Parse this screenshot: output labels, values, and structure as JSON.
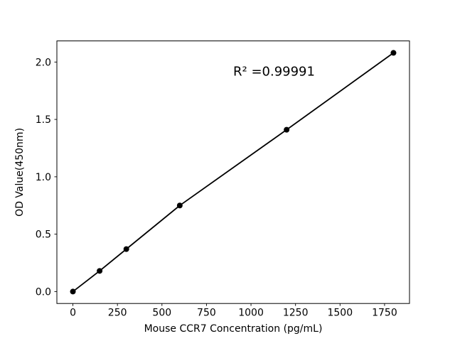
{
  "chart_data": {
    "type": "line",
    "title": "",
    "xlabel": "Mouse CCR7 Concentration (pg/mL)",
    "ylabel": "OD Value(450nm)",
    "x": [
      0,
      150,
      300,
      600,
      1200,
      1800
    ],
    "y": [
      0.0,
      0.18,
      0.37,
      0.75,
      1.41,
      2.08
    ],
    "xlim": [
      -90,
      1890
    ],
    "ylim": [
      -0.104,
      2.184
    ],
    "xtick_values": [
      0,
      250,
      500,
      750,
      1000,
      1250,
      1500,
      1750
    ],
    "xtick_labels": [
      "0",
      "250",
      "500",
      "750",
      "1000",
      "1250",
      "1500",
      "1750"
    ],
    "ytick_values": [
      0.0,
      0.5,
      1.0,
      1.5,
      2.0
    ],
    "ytick_labels": [
      "0.0",
      "0.5",
      "1.0",
      "1.5",
      "2.0"
    ],
    "grid": false,
    "legend": "none",
    "background_color": "#ffffff",
    "line_color": "#000000",
    "marker": "circle",
    "marker_color": "#000000",
    "annotation": {
      "text": "R² =0.99991",
      "x": 900,
      "y": 1.88
    }
  }
}
